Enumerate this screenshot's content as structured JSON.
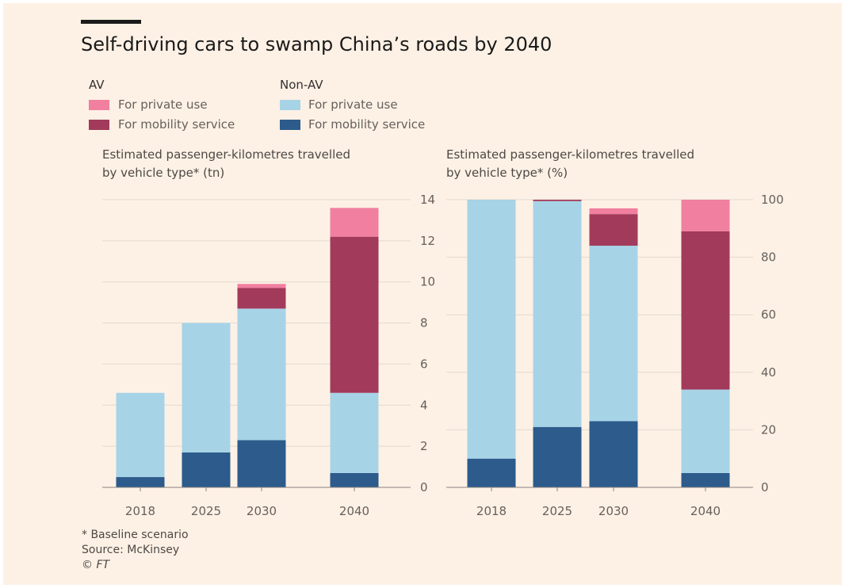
{
  "title": "Self-driving cars to swamp China’s roads by 2040",
  "legend": {
    "av_heading": "AV",
    "nonav_heading": "Non-AV",
    "items": [
      {
        "label": "For private use",
        "color": "#f07fa0"
      },
      {
        "label": "For mobility service",
        "color": "#a23a5b"
      },
      {
        "label": "For private use",
        "color": "#a7d3e7"
      },
      {
        "label": "For mobility service",
        "color": "#2c5b8c"
      }
    ]
  },
  "colors": {
    "av_private": "#f07fa0",
    "av_mobility": "#a23a5b",
    "nonav_private": "#a7d3e7",
    "nonav_mobility": "#2c5b8c",
    "background": "#fdf1e5",
    "grid": "#e3d9cf",
    "axis": "#8a847f"
  },
  "footer": {
    "note": "* Baseline scenario",
    "source": "Source: McKinsey",
    "copyright": "© FT"
  },
  "chart_data": [
    {
      "type": "bar",
      "stacked": true,
      "title": "Estimated passenger-kilometres travelled\nby vehicle type* (tn)",
      "categories": [
        "2018",
        "2025",
        "2030",
        "2040"
      ],
      "ylim": [
        0,
        14
      ],
      "yticks": [
        "0",
        "2",
        "4",
        "6",
        "8",
        "10",
        "12",
        "14"
      ],
      "y_axis_side": "right",
      "grid": true,
      "series": [
        {
          "name": "Non-AV For mobility service",
          "key": "nonav_mobility",
          "values": [
            0.5,
            1.7,
            2.3,
            0.7
          ]
        },
        {
          "name": "Non-AV For private use",
          "key": "nonav_private",
          "values": [
            4.1,
            6.3,
            6.4,
            3.9
          ]
        },
        {
          "name": "AV For mobility service",
          "key": "av_mobility",
          "values": [
            0,
            0,
            1.0,
            7.6
          ]
        },
        {
          "name": "AV For private use",
          "key": "av_private",
          "values": [
            0,
            0,
            0.2,
            1.4
          ]
        }
      ]
    },
    {
      "type": "bar",
      "stacked": true,
      "title": "Estimated passenger-kilometres travelled\nby vehicle type* (%)",
      "categories": [
        "2018",
        "2025",
        "2030",
        "2040"
      ],
      "ylim": [
        0,
        100
      ],
      "yticks": [
        "0",
        "20",
        "40",
        "60",
        "80",
        "100"
      ],
      "y_axis_side": "right",
      "grid": true,
      "series": [
        {
          "name": "Non-AV For mobility service",
          "key": "nonav_mobility",
          "values": [
            10,
            21,
            23,
            5
          ]
        },
        {
          "name": "Non-AV For private use",
          "key": "nonav_private",
          "values": [
            90,
            78.5,
            61,
            29
          ]
        },
        {
          "name": "AV For mobility service",
          "key": "av_mobility",
          "values": [
            0,
            0.5,
            11,
            55
          ]
        },
        {
          "name": "AV For private use",
          "key": "av_private",
          "values": [
            0,
            0,
            2,
            11
          ]
        }
      ]
    }
  ]
}
